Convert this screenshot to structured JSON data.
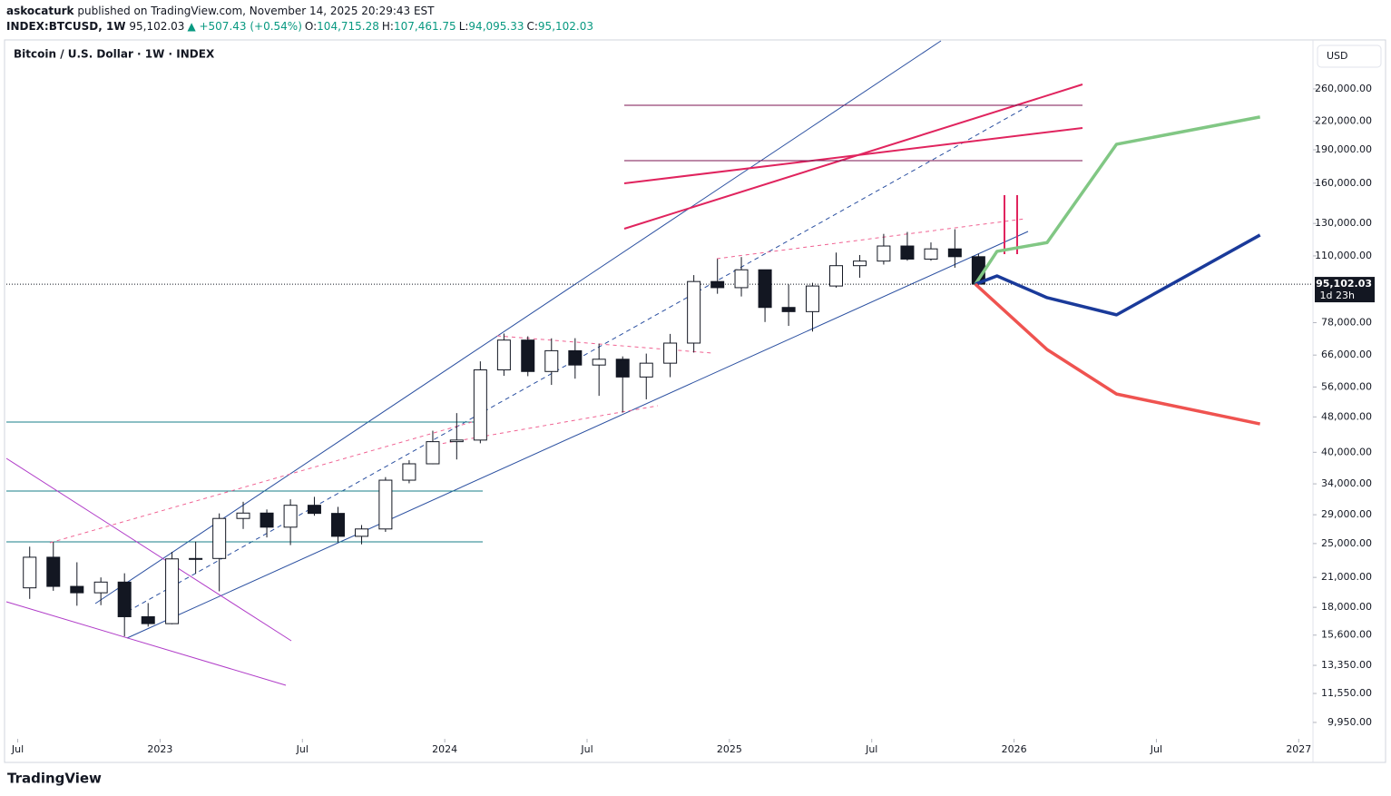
{
  "header": {
    "author": "askocaturk",
    "published": "published on TradingView.com, November 14, 2025 20:29:43 EST",
    "symbol": "INDEX:BTCUSD, 1W",
    "change": "▲ +507.43 (+0.54%)",
    "ohlc": [
      {
        "label": "O:",
        "value": "104,715.28"
      },
      {
        "label": "H:",
        "value": "107,461.75"
      },
      {
        "label": "L:",
        "value": "94,095.33"
      },
      {
        "label": "C:",
        "value": "95,102.03"
      }
    ]
  },
  "footer": {
    "brand": "TradingView"
  },
  "chart_data": {
    "type": "candlestick",
    "title": "Bitcoin / U.S. Dollar · 1W · INDEX",
    "currency": "USD",
    "log_scale": true,
    "last_price": {
      "value": 95102.03,
      "label": "95,102.03"
    },
    "countdown": "1d 23h",
    "xlim": [
      2022.46,
      2027.05
    ],
    "ylim": [
      9230,
      333000
    ],
    "xticks": [
      {
        "value": 2022.5,
        "label": "Jul"
      },
      {
        "value": 2023,
        "label": "2023"
      },
      {
        "value": 2023.5,
        "label": "Jul"
      },
      {
        "value": 2024,
        "label": "2024"
      },
      {
        "value": 2024.5,
        "label": "Jul"
      },
      {
        "value": 2025,
        "label": "2025"
      },
      {
        "value": 2025.5,
        "label": "Jul"
      },
      {
        "value": 2026,
        "label": "2026"
      },
      {
        "value": 2026.5,
        "label": "Jul"
      },
      {
        "value": 2027,
        "label": "2027"
      }
    ],
    "yticks": [
      {
        "value": 260000,
        "label": "260,000.00"
      },
      {
        "value": 220000,
        "label": "220,000.00"
      },
      {
        "value": 190000,
        "label": "190,000.00"
      },
      {
        "value": 160000,
        "label": "160,000.00"
      },
      {
        "value": 130000,
        "label": "130,000.00"
      },
      {
        "value": 110000,
        "label": "110,000.00"
      },
      {
        "value": 78000,
        "label": "78,000.00"
      },
      {
        "value": 66000,
        "label": "66,000.00"
      },
      {
        "value": 56000,
        "label": "56,000.00"
      },
      {
        "value": 48000,
        "label": "48,000.00"
      },
      {
        "value": 40000,
        "label": "40,000.00"
      },
      {
        "value": 34000,
        "label": "34,000.00"
      },
      {
        "value": 29000,
        "label": "29,000.00"
      },
      {
        "value": 25000,
        "label": "25,000.00"
      },
      {
        "value": 21000,
        "label": "21,000.00"
      },
      {
        "value": 18000,
        "label": "18,000.00"
      },
      {
        "value": 15600,
        "label": "15,600.00"
      },
      {
        "value": 13350,
        "label": "13,350.00"
      },
      {
        "value": 11550,
        "label": "11,550.00"
      },
      {
        "value": 9950,
        "label": "9,950.00"
      }
    ],
    "x": [
      2022.542,
      2022.625,
      2022.708,
      2022.792,
      2022.875,
      2022.958,
      2023.042,
      2023.125,
      2023.208,
      2023.292,
      2023.375,
      2023.458,
      2023.542,
      2023.625,
      2023.708,
      2023.792,
      2023.875,
      2023.958,
      2024.042,
      2024.125,
      2024.208,
      2024.292,
      2024.375,
      2024.458,
      2024.542,
      2024.625,
      2024.708,
      2024.792,
      2024.875,
      2024.958,
      2025.042,
      2025.125,
      2025.208,
      2025.292,
      2025.375,
      2025.458,
      2025.542,
      2025.625,
      2025.708,
      2025.792,
      2025.875
    ],
    "open": [
      19900,
      23300,
      20050,
      19400,
      20500,
      17150,
      16550,
      23100,
      23150,
      28450,
      29250,
      27200,
      30450,
      29200,
      25950,
      26950,
      34650,
      37700,
      42250,
      42600,
      61150,
      71300,
      60650,
      67500,
      62700,
      64600,
      58950,
      63300,
      70200,
      96400,
      93400,
      102400,
      84350,
      82550,
      94200,
      104600,
      107100,
      115750,
      108200,
      114050,
      109550
    ],
    "high": [
      24600,
      25200,
      22700,
      21000,
      21450,
      18400,
      23950,
      25250,
      29200,
      31000,
      29800,
      31400,
      31800,
      30200,
      27500,
      35200,
      38400,
      44700,
      48950,
      63900,
      73750,
      72700,
      71950,
      72000,
      70000,
      65550,
      66500,
      73600,
      99650,
      108300,
      109350,
      102500,
      95000,
      95750,
      111900,
      110500,
      123200,
      124450,
      117900,
      126200,
      111200
    ],
    "low": [
      18800,
      19600,
      18150,
      18200,
      15500,
      16300,
      16500,
      21400,
      19550,
      26950,
      25800,
      24800,
      28850,
      25150,
      24900,
      26550,
      34100,
      37600,
      38550,
      41900,
      59300,
      59200,
      56600,
      58450,
      53500,
      49100,
      52550,
      58900,
      66850,
      90500,
      89250,
      78250,
      76700,
      74500,
      93400,
      98300,
      105200,
      107300,
      107300,
      103500,
      94095
    ],
    "close": [
      23300,
      20050,
      19400,
      20500,
      17150,
      16550,
      23100,
      23150,
      28450,
      29250,
      27200,
      30450,
      29200,
      25950,
      26950,
      34650,
      37700,
      42250,
      42600,
      61150,
      71300,
      60650,
      67500,
      62700,
      64600,
      58950,
      63300,
      70200,
      96400,
      93400,
      102400,
      84350,
      82550,
      94200,
      104600,
      107100,
      115750,
      108200,
      114050,
      109550,
      95102
    ],
    "projections": [
      {
        "color": "#81c784",
        "x": [
          2025.864,
          2025.94,
          2026.116,
          2026.36,
          2026.864
        ],
        "values": [
          95102,
          112600,
          117800,
          195500,
          225000
        ]
      },
      {
        "color": "#1a3a9a",
        "x": [
          2025.864,
          2025.94,
          2026.116,
          2026.36,
          2026.864
        ],
        "values": [
          95102,
          99200,
          88700,
          81200,
          122500
        ]
      },
      {
        "color": "#ef5350",
        "x": [
          2025.864,
          2026.116,
          2026.36,
          2026.864
        ],
        "values": [
          95102,
          67900,
          54000,
          46300
        ]
      }
    ]
  }
}
